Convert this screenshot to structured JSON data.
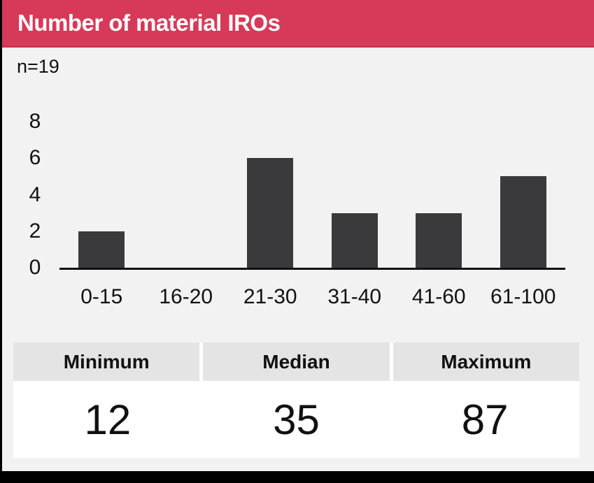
{
  "header": {
    "title": "Number of material IROs",
    "bg_color": "#D63A58"
  },
  "chart_data": {
    "type": "bar",
    "title": "Number of material IROs",
    "annotation": "n=19",
    "categories": [
      "0-15",
      "16-20",
      "21-30",
      "31-40",
      "41-60",
      "61-100"
    ],
    "values": [
      2,
      0,
      6,
      3,
      3,
      5
    ],
    "xlabel": "",
    "ylabel": "",
    "ylim": [
      0,
      8
    ],
    "yticks": [
      0,
      2,
      4,
      6,
      8
    ],
    "grid": false,
    "legend": false,
    "bar_color": "#3A3A3C"
  },
  "stats": {
    "columns": [
      {
        "label": "Minimum",
        "value": "12"
      },
      {
        "label": "Median",
        "value": "35"
      },
      {
        "label": "Maximum",
        "value": "87"
      }
    ]
  },
  "colors": {
    "header_bg": "#D63A58",
    "header_underline": "#C22F4B",
    "page_bg": "#F2F2F2",
    "frame": "#000000",
    "bar": "#3A3A3C",
    "table_header_bg": "#E4E4E4",
    "table_value_bg": "#FFFFFF",
    "text": "#111111",
    "title_text": "#FFFFFF"
  }
}
